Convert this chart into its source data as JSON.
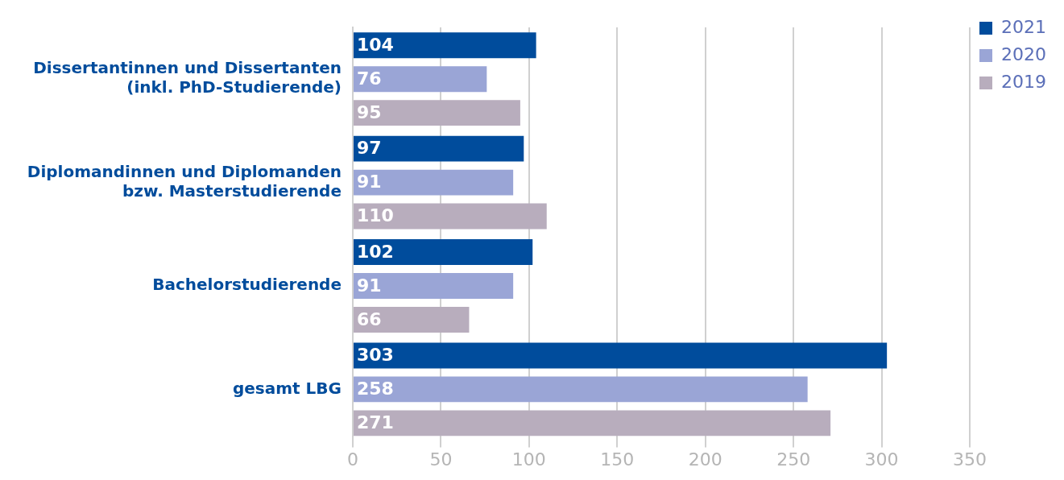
{
  "chart_data": {
    "type": "bar",
    "orientation": "horizontal",
    "categories": [
      "Dissertantinnen und Dissertanten (inkl. PhD-Studierende)",
      "Diplomandinnen und Diplomanden bzw. Masterstudierende",
      "Bachelorstudierende",
      "gesamt LBG"
    ],
    "series": [
      {
        "name": "2021",
        "color": "#004c9c",
        "values": [
          104,
          97,
          102,
          303
        ]
      },
      {
        "name": "2020",
        "color": "#9aa5d6",
        "values": [
          76,
          91,
          91,
          258
        ]
      },
      {
        "name": "2019",
        "color": "#b8adbd",
        "values": [
          95,
          110,
          66,
          271
        ]
      }
    ],
    "xlim": [
      0,
      350
    ],
    "xticks": [
      0,
      50,
      100,
      150,
      200,
      250,
      300,
      350
    ],
    "grid": "x",
    "legend": "top right",
    "data_labels": true
  }
}
